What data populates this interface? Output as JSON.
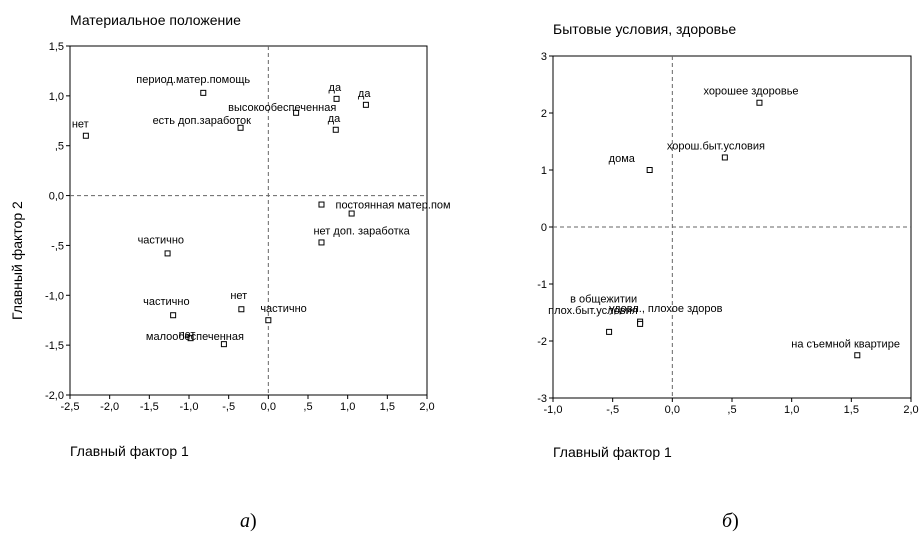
{
  "chart_data": [
    {
      "type": "scatter",
      "title": "Материальное положение",
      "xlabel": "Главный фактор 1",
      "ylabel": "Главный фактор 2",
      "xlim": [
        -2.5,
        2.0
      ],
      "ylim": [
        -2.0,
        1.5
      ],
      "x_ticks": [
        "-2,5",
        "-2,0",
        "-1,5",
        "-1,0",
        "-,5",
        "0,0",
        ",5",
        "1,0",
        "1,5",
        "2,0"
      ],
      "y_ticks": [
        "1,5",
        "1,0",
        ",5",
        "0,0",
        "-,5",
        "-1,0",
        "-1,5",
        "-2,0"
      ],
      "grid": false,
      "reference_lines": [
        0,
        0
      ],
      "points": [
        {
          "label": "нет",
          "x": -2.3,
          "y": 0.6
        },
        {
          "label": "период.матер.помощь",
          "x": -0.82,
          "y": 1.03
        },
        {
          "label": "высокообеспеченная",
          "x": 0.35,
          "y": 0.83
        },
        {
          "label": "есть доп.заработок",
          "x": -0.35,
          "y": 0.68
        },
        {
          "label": "да",
          "x": 0.86,
          "y": 0.97
        },
        {
          "label": "да",
          "x": 1.23,
          "y": 0.91
        },
        {
          "label": "да",
          "x": 0.85,
          "y": 0.66
        },
        {
          "label": "постоянная матер.пом",
          "x": 0.67,
          "y": -0.09
        },
        {
          "label": "",
          "x": 1.05,
          "y": -0.18
        },
        {
          "label": "нет доп. заработка",
          "x": 0.67,
          "y": -0.47
        },
        {
          "label": "частично",
          "x": -1.27,
          "y": -0.58
        },
        {
          "label": "частично",
          "x": -1.2,
          "y": -1.2
        },
        {
          "label": "нет",
          "x": -0.34,
          "y": -1.14
        },
        {
          "label": "частично",
          "x": 0.0,
          "y": -1.25
        },
        {
          "label": "нет",
          "x": -0.98,
          "y": -1.43
        },
        {
          "label": "малообеспеченная",
          "x": -0.56,
          "y": -1.49
        }
      ]
    },
    {
      "type": "scatter",
      "title": "Бытовые условия, здоровье",
      "xlabel": "Главный фактор 1",
      "ylabel": "",
      "xlim": [
        -1.0,
        2.0
      ],
      "ylim": [
        -3,
        3
      ],
      "x_ticks": [
        "-1,0",
        "-,5",
        "0,0",
        ",5",
        "1,0",
        "1,5",
        "2,0"
      ],
      "y_ticks": [
        "3",
        "2",
        "1",
        "0",
        "-1",
        "-2",
        "-3"
      ],
      "grid": false,
      "reference_lines": [
        0,
        0
      ],
      "points": [
        {
          "label": "хорошее здоровье",
          "x": 0.73,
          "y": 2.18
        },
        {
          "label": "хорош.быт.условия",
          "x": 0.44,
          "y": 1.22
        },
        {
          "label": "дома",
          "x": -0.19,
          "y": 1.0
        },
        {
          "label": "удовл., плохое здоров",
          "x": -0.53,
          "y": -1.84
        },
        {
          "label": "в общежитии",
          "x": -0.27,
          "y": -1.66
        },
        {
          "label": "плох.быт.условия",
          "x": -0.27,
          "y": -1.7
        },
        {
          "label": "на съемной квартире",
          "x": 1.55,
          "y": -2.25
        }
      ]
    }
  ],
  "captions": {
    "left_letter": "а",
    "left_paren": ")",
    "right_letter": "б",
    "right_paren": ")"
  }
}
